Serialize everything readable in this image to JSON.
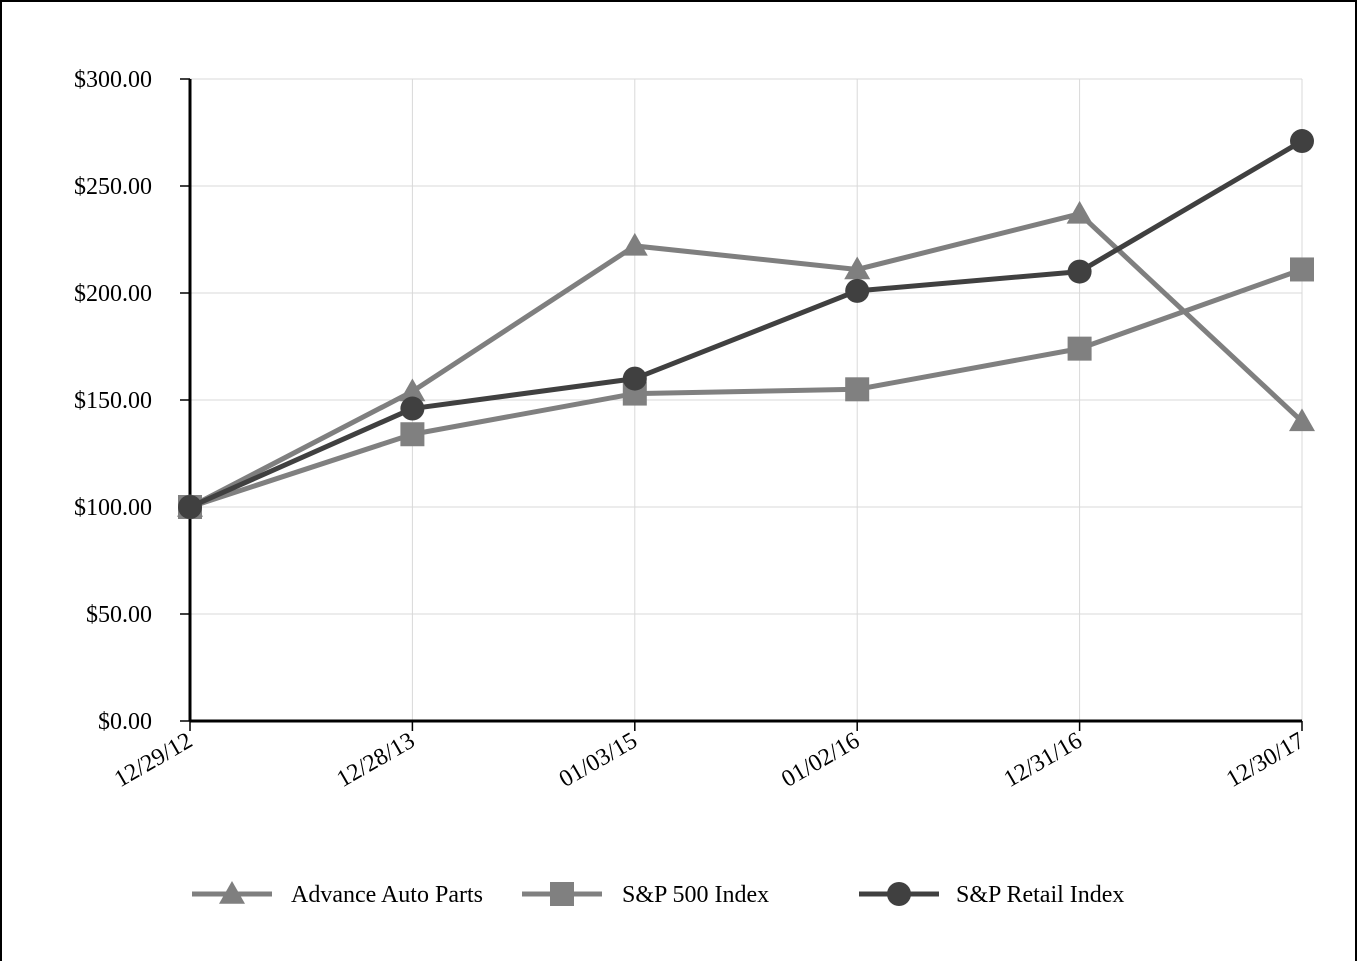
{
  "chart_data": {
    "type": "line",
    "title": "",
    "xlabel": "",
    "ylabel": "",
    "categories": [
      "12/29/12",
      "12/28/13",
      "01/03/15",
      "01/02/16",
      "12/31/16",
      "12/30/17"
    ],
    "ylim": [
      0,
      300
    ],
    "yticks": [
      {
        "value": 0,
        "label": "$0.00"
      },
      {
        "value": 50,
        "label": "$50.00"
      },
      {
        "value": 100,
        "label": "$100.00"
      },
      {
        "value": 150,
        "label": "$150.00"
      },
      {
        "value": 200,
        "label": "$200.00"
      },
      {
        "value": 250,
        "label": "$250.00"
      },
      {
        "value": 300,
        "label": "$300.00"
      }
    ],
    "grid": true,
    "legend_position": "bottom",
    "series": [
      {
        "name": "Advance Auto Parts",
        "marker": "triangle",
        "color": "#7f7f7f",
        "values": [
          100,
          154,
          222,
          211,
          237,
          140
        ]
      },
      {
        "name": "S&P 500 Index",
        "marker": "square",
        "color": "#808080",
        "values": [
          100,
          134,
          153,
          155,
          174,
          211
        ]
      },
      {
        "name": "S&P Retail Index",
        "marker": "circle",
        "color": "#404040",
        "values": [
          100,
          146,
          160,
          201,
          210,
          271
        ]
      }
    ]
  }
}
